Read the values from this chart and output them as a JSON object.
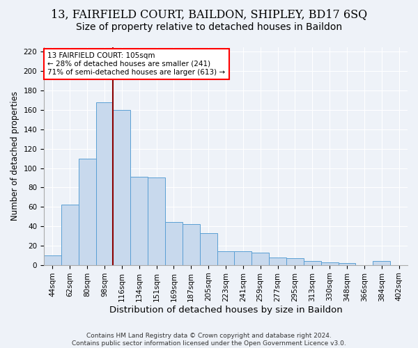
{
  "title_line1": "13, FAIRFIELD COURT, BAILDON, SHIPLEY, BD17 6SQ",
  "title_line2": "Size of property relative to detached houses in Baildon",
  "xlabel": "Distribution of detached houses by size in Baildon",
  "ylabel": "Number of detached properties",
  "footer_line1": "Contains HM Land Registry data © Crown copyright and database right 2024.",
  "footer_line2": "Contains public sector information licensed under the Open Government Licence v3.0.",
  "categories": [
    "44sqm",
    "62sqm",
    "80sqm",
    "98sqm",
    "116sqm",
    "134sqm",
    "151sqm",
    "169sqm",
    "187sqm",
    "205sqm",
    "223sqm",
    "241sqm",
    "259sqm",
    "277sqm",
    "295sqm",
    "313sqm",
    "330sqm",
    "348sqm",
    "366sqm",
    "384sqm",
    "402sqm"
  ],
  "values": [
    10,
    62,
    110,
    168,
    160,
    91,
    90,
    44,
    42,
    33,
    14,
    14,
    13,
    8,
    7,
    4,
    3,
    2,
    0,
    4,
    0
  ],
  "bar_color": "#c8d9ed",
  "bar_edge_color": "#5a9fd4",
  "annotation_line1": "13 FAIRFIELD COURT: 105sqm",
  "annotation_line2": "← 28% of detached houses are smaller (241)",
  "annotation_line3": "71% of semi-detached houses are larger (613) →",
  "red_line_x": 3.5,
  "ylim": [
    0,
    225
  ],
  "yticks": [
    0,
    20,
    40,
    60,
    80,
    100,
    120,
    140,
    160,
    180,
    200,
    220
  ],
  "background_color": "#eef2f8",
  "grid_color": "#ffffff",
  "title1_fontsize": 11.5,
  "title2_fontsize": 10,
  "xlabel_fontsize": 9.5,
  "ylabel_fontsize": 8.5,
  "tick_fontsize": 7.5,
  "annotation_fontsize": 7.5,
  "footer_fontsize": 6.5
}
